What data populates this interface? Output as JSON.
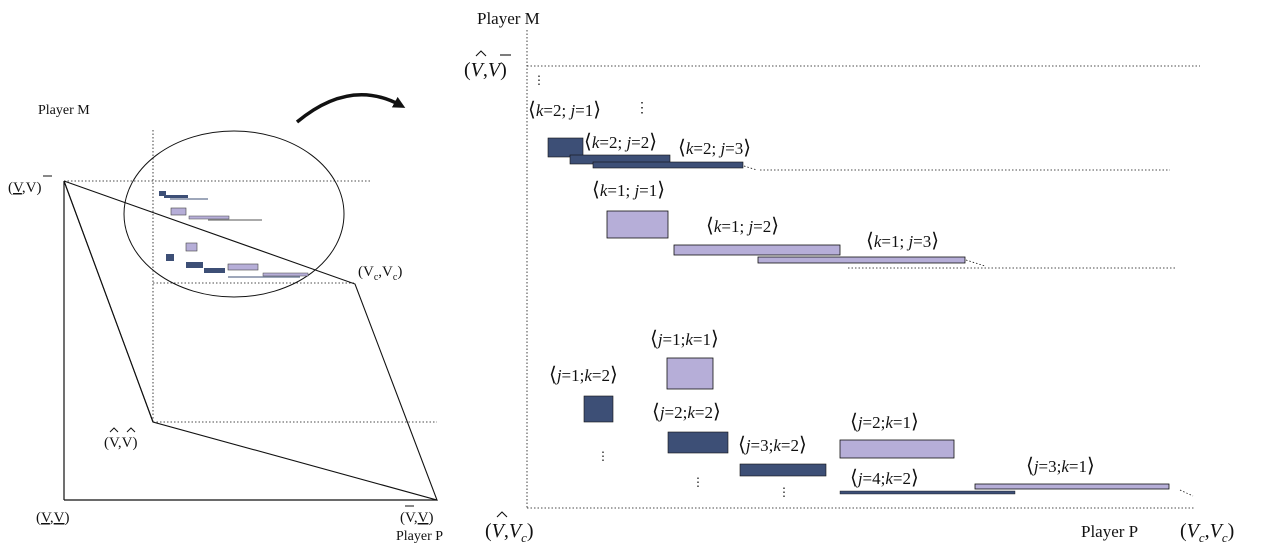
{
  "left_panel": {
    "y_axis_label": "Player M",
    "x_axis_label": "Player P",
    "point_top": {
      "a": "V",
      "b": "V",
      "a_mark": "underline",
      "b_mark": "bar"
    },
    "point_vc": {
      "a": "V",
      "a_sub": "c",
      "b": "V",
      "b_sub": "c"
    },
    "point_hat": {
      "a": "V",
      "b": "V",
      "a_mark": "hat",
      "b_mark": "hat"
    },
    "point_origin": {
      "a": "V",
      "b": "V",
      "a_mark": "underline",
      "b_mark": "underline"
    },
    "point_bottom_right": {
      "a": "V",
      "b": "V",
      "a_mark": "bar",
      "b_mark": "underline"
    }
  },
  "right_panel": {
    "y_axis_label": "Player M",
    "x_axis_label": "Player P",
    "point_top": {
      "a": "V",
      "b": "V",
      "a_mark": "hat",
      "b_mark": "bar"
    },
    "point_origin": {
      "a": "V",
      "b": "V",
      "b_sub": "c",
      "a_mark": "hat"
    },
    "point_right": {
      "a": "V",
      "a_sub": "c",
      "b": "V",
      "b_sub": "c"
    },
    "upper_labels": [
      {
        "first": "k",
        "first_val": "2",
        "second": "j",
        "second_val": "1"
      },
      {
        "first": "k",
        "first_val": "2",
        "second": "j",
        "second_val": "2"
      },
      {
        "first": "k",
        "first_val": "2",
        "second": "j",
        "second_val": "3"
      },
      {
        "first": "k",
        "first_val": "1",
        "second": "j",
        "second_val": "1"
      },
      {
        "first": "k",
        "first_val": "1",
        "second": "j",
        "second_val": "2"
      },
      {
        "first": "k",
        "first_val": "1",
        "second": "j",
        "second_val": "3"
      }
    ],
    "lower_labels": [
      {
        "first": "j",
        "first_val": "1",
        "second": "k",
        "second_val": "1"
      },
      {
        "first": "j",
        "first_val": "1",
        "second": "k",
        "second_val": "2"
      },
      {
        "first": "j",
        "first_val": "2",
        "second": "k",
        "second_val": "2"
      },
      {
        "first": "j",
        "first_val": "2",
        "second": "k",
        "second_val": "1"
      },
      {
        "first": "j",
        "first_val": "3",
        "second": "k",
        "second_val": "2"
      },
      {
        "first": "j",
        "first_val": "4",
        "second": "k",
        "second_val": "2"
      },
      {
        "first": "j",
        "first_val": "3",
        "second": "k",
        "second_val": "1"
      }
    ],
    "ellipsis": "⋮"
  },
  "colors": {
    "dark_block": "#3d4f76",
    "light_block": "#b6aed8",
    "line": "#111111"
  }
}
